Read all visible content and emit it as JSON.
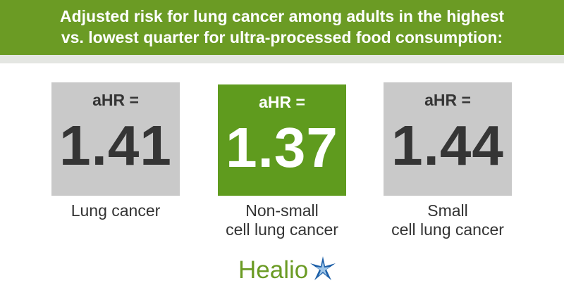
{
  "header": {
    "title_lines": [
      "Adjusted risk for lung cancer among adults in the highest",
      "vs. lowest quarter for ultra-processed food consumption:"
    ]
  },
  "cards": [
    {
      "label": "aHR =",
      "value": "1.41",
      "caption_lines": [
        "Lung cancer"
      ],
      "highlight": false
    },
    {
      "label": "aHR =",
      "value": "1.37",
      "caption_lines": [
        "Non-small",
        "cell lung cancer"
      ],
      "highlight": true
    },
    {
      "label": "aHR =",
      "value": "1.44",
      "caption_lines": [
        "Small",
        "cell lung cancer"
      ],
      "highlight": false
    }
  ],
  "logo": {
    "text": "Healio"
  }
}
